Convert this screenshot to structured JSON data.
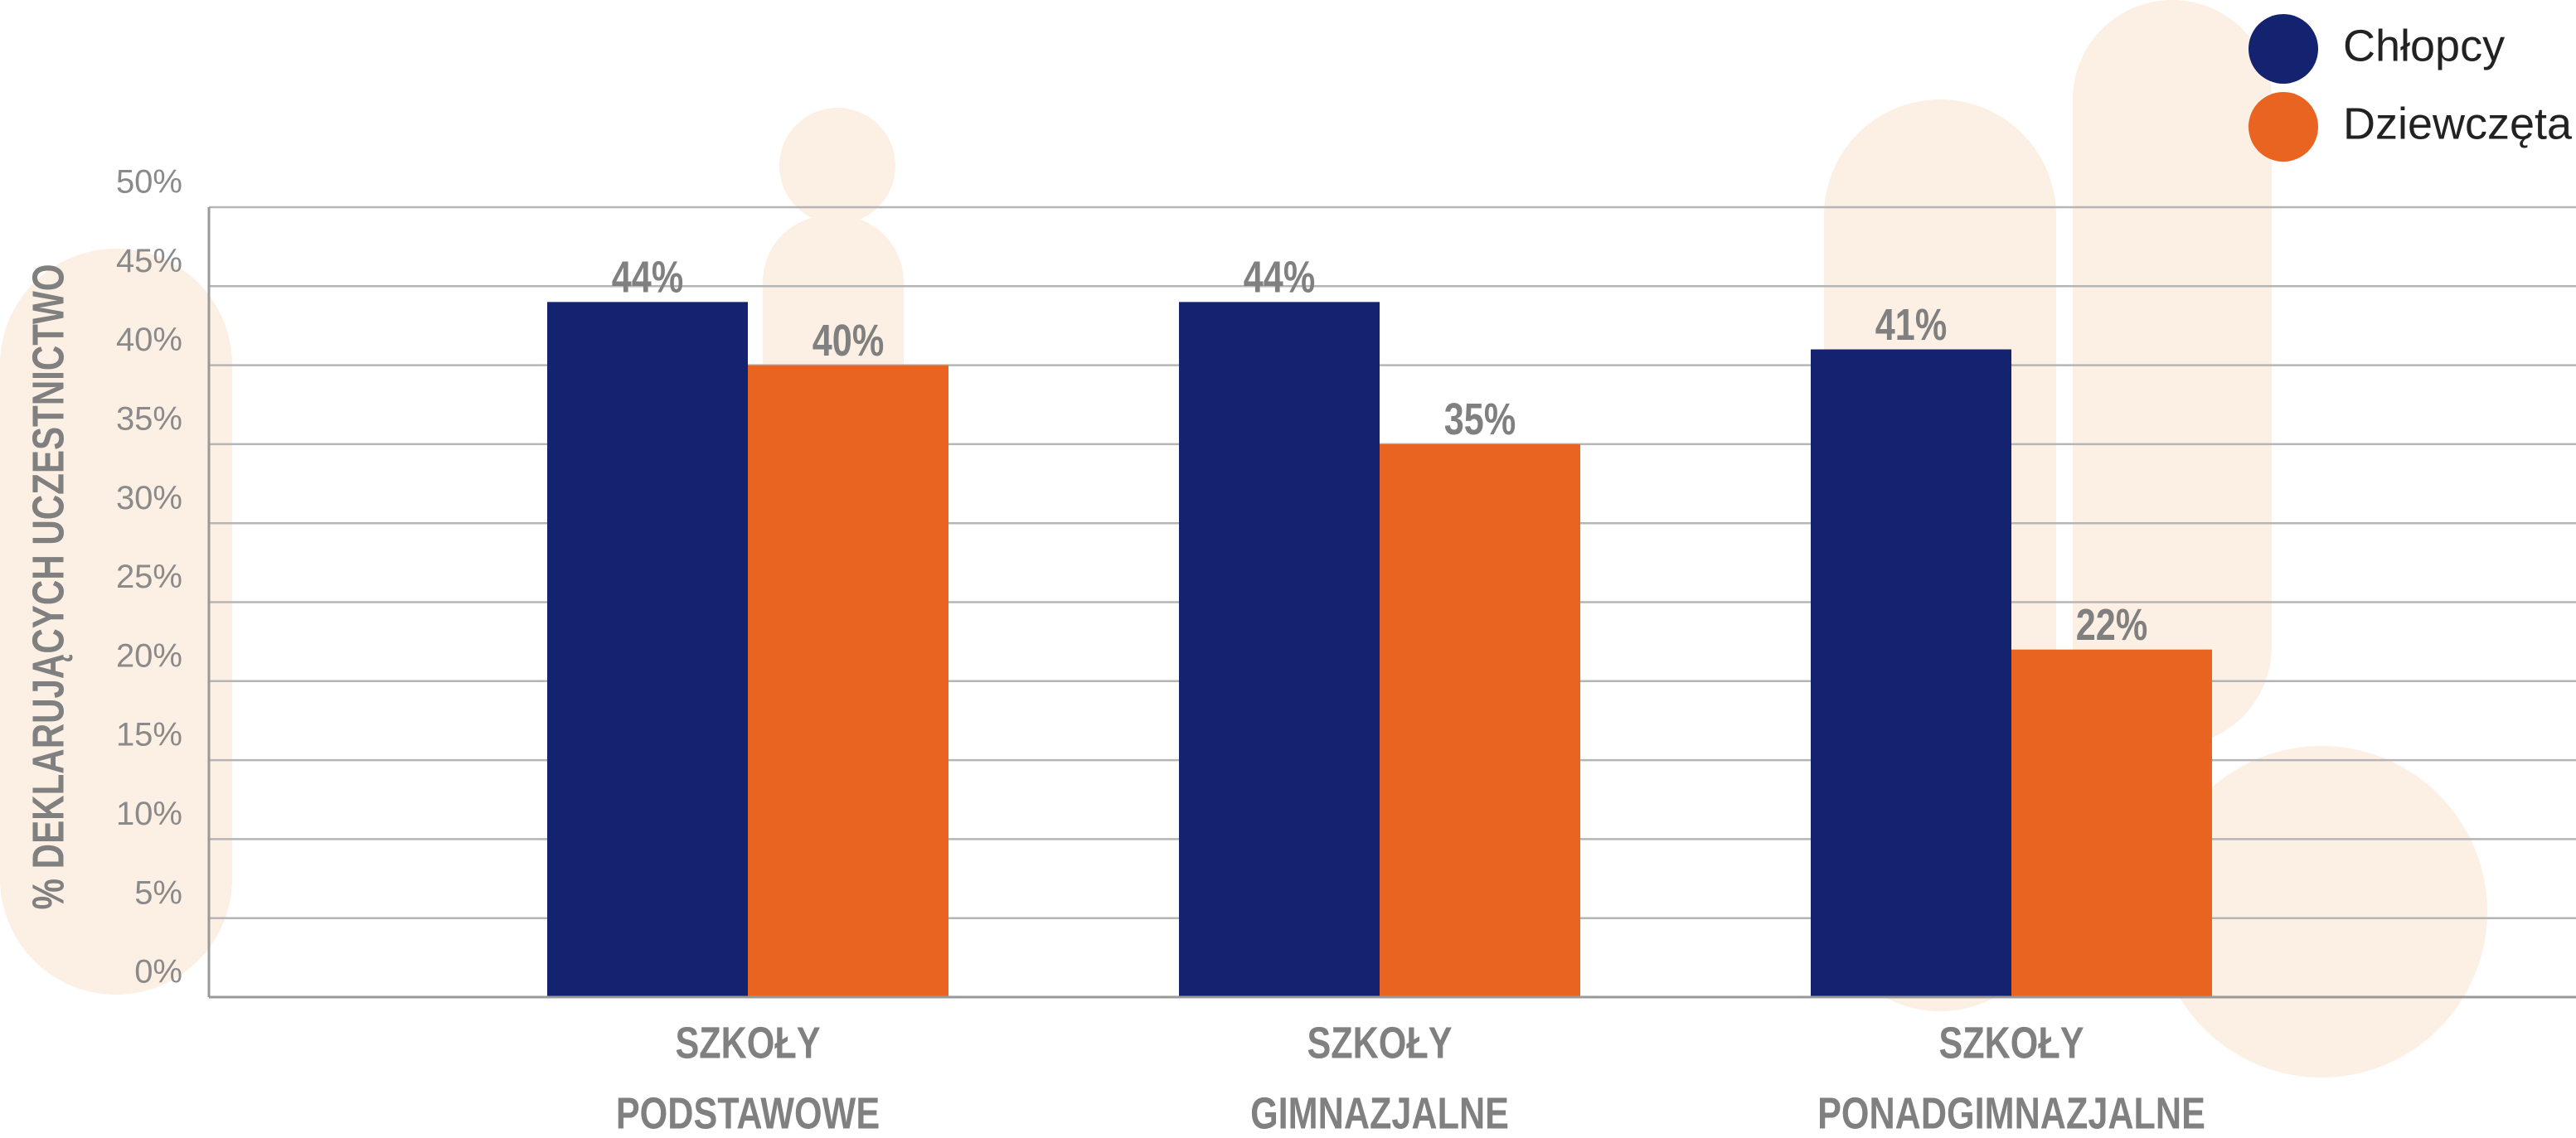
{
  "chart_data": {
    "type": "bar",
    "y_label": "% DEKLARUJĄCYCH UCZESTNICTWO",
    "categories": [
      "SZKOŁY PODSTAWOWE",
      "SZKOŁY GIMNAZJALNE",
      "SZKOŁY PONADGIMNAZJALNE"
    ],
    "series": [
      {
        "name": "Chłopcy",
        "color": "#13236f",
        "values": [
          44,
          44,
          41
        ],
        "value_labels": [
          "44%",
          "44%",
          "41%"
        ]
      },
      {
        "name": "Dziewczęta",
        "color": "#e86420",
        "values": [
          40,
          35,
          22
        ],
        "value_labels": [
          "40%",
          "35%",
          "22%"
        ]
      }
    ],
    "ylim": [
      0,
      50
    ],
    "yticks": [
      {
        "value": 0,
        "label": "0%"
      },
      {
        "value": 5,
        "label": "5%"
      },
      {
        "value": 10,
        "label": "10%"
      },
      {
        "value": 15,
        "label": "15%"
      },
      {
        "value": 20,
        "label": "20%"
      },
      {
        "value": 25,
        "label": "25%"
      },
      {
        "value": 30,
        "label": "30%"
      },
      {
        "value": 35,
        "label": "35%"
      },
      {
        "value": 40,
        "label": "40%"
      },
      {
        "value": 45,
        "label": "45%"
      },
      {
        "value": 50,
        "label": "50%"
      }
    ],
    "grid": true,
    "legend": "top-right"
  }
}
